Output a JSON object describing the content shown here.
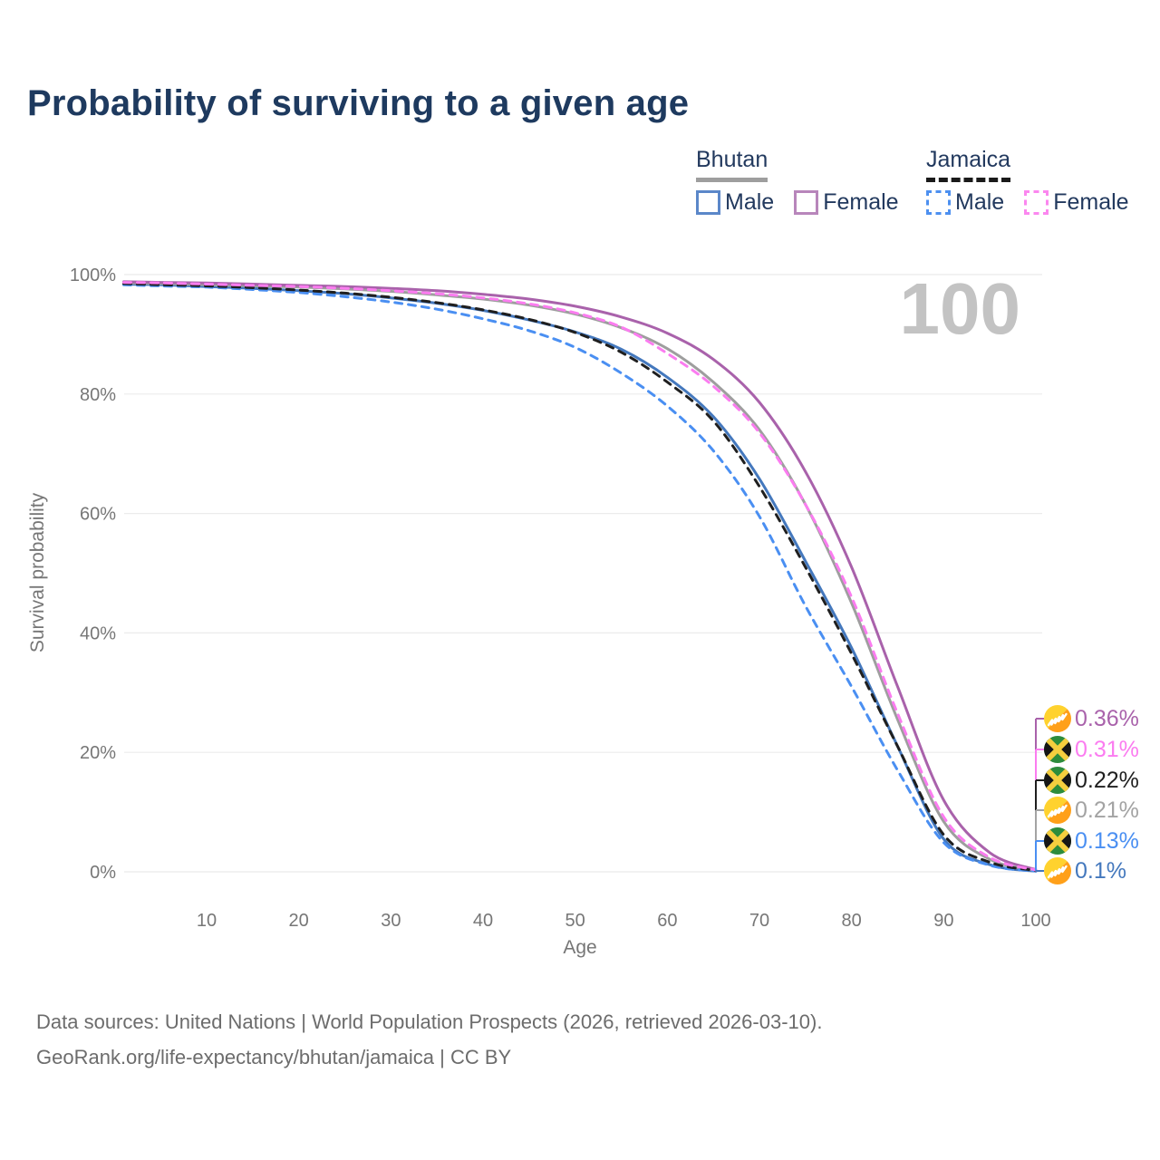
{
  "title": "Probability of surviving to a given age",
  "legend": {
    "groups": [
      {
        "country": "Bhutan",
        "line_style": "solid",
        "underline_color": "#9e9e9e",
        "items": [
          {
            "label": "Male",
            "color": "#5b87c9",
            "dashed": false
          },
          {
            "label": "Female",
            "color": "#b886bb",
            "dashed": false
          }
        ]
      },
      {
        "country": "Jamaica",
        "line_style": "dashed",
        "underline_color": "#1a1a1a",
        "items": [
          {
            "label": "Male",
            "color": "#4d90f0",
            "dashed": true
          },
          {
            "label": "Female",
            "color": "#fb87ef",
            "dashed": true
          }
        ]
      }
    ]
  },
  "chart_data": {
    "type": "line",
    "title": "Probability of surviving to a given age",
    "xlabel": "Age",
    "ylabel": "Survival probability",
    "watermark": "100",
    "x_ticks": [
      10,
      20,
      30,
      40,
      50,
      60,
      70,
      80,
      90,
      100
    ],
    "y_ticks": [
      "0%",
      "20%",
      "40%",
      "60%",
      "80%",
      "100%"
    ],
    "xlim": [
      1,
      100
    ],
    "ylim": [
      0,
      100
    ],
    "grid": "horizontal",
    "legend_position": "top-right",
    "ages": [
      1,
      5,
      10,
      15,
      20,
      25,
      30,
      35,
      40,
      45,
      50,
      55,
      60,
      65,
      70,
      75,
      80,
      85,
      90,
      95,
      100
    ],
    "series": [
      {
        "name": "Bhutan Male",
        "country": "Bhutan",
        "sex": "Male",
        "color": "#4478bd",
        "dashed": false,
        "values": [
          98.4,
          98.3,
          98.0,
          97.7,
          97.3,
          96.8,
          96.1,
          95.2,
          94.0,
          92.4,
          90.4,
          87.5,
          82.8,
          76.2,
          65.8,
          52.0,
          37.5,
          21.0,
          5.5,
          1.2,
          0.1
        ],
        "end_value_pct": "0.1%"
      },
      {
        "name": "Bhutan Both",
        "country": "Bhutan",
        "sex": "Both",
        "color": "#9e9e9e",
        "dashed": false,
        "values": [
          98.6,
          98.5,
          98.3,
          98.1,
          97.9,
          97.6,
          97.2,
          96.6,
          95.9,
          94.9,
          93.4,
          91.1,
          87.6,
          82.0,
          74.0,
          61.5,
          45.0,
          25.5,
          8.4,
          2.1,
          0.21
        ],
        "end_value_pct": "0.21%"
      },
      {
        "name": "Bhutan Female",
        "country": "Bhutan",
        "sex": "Female",
        "color": "#a962ab",
        "dashed": false,
        "values": [
          98.8,
          98.7,
          98.6,
          98.4,
          98.2,
          98.0,
          97.7,
          97.3,
          96.7,
          95.9,
          94.7,
          92.9,
          90.2,
          85.8,
          78.6,
          67.0,
          51.0,
          31.0,
          12.0,
          3.2,
          0.36
        ],
        "end_value_pct": "0.36%"
      },
      {
        "name": "Jamaica Male",
        "country": "Jamaica",
        "sex": "Male",
        "color": "#4a8ff2",
        "dashed": true,
        "values": [
          98.3,
          98.1,
          97.9,
          97.5,
          97.0,
          96.3,
          95.4,
          94.2,
          92.6,
          90.6,
          87.8,
          83.5,
          78.0,
          70.5,
          59.5,
          44.5,
          31.0,
          17.0,
          4.9,
          1.1,
          0.13
        ],
        "end_value_pct": "0.13%"
      },
      {
        "name": "Jamaica Both",
        "country": "Jamaica",
        "sex": "Both",
        "color": "#1f1f1f",
        "dashed": true,
        "values": [
          98.5,
          98.3,
          98.1,
          97.8,
          97.4,
          96.9,
          96.2,
          95.3,
          94.1,
          92.5,
          90.3,
          87.0,
          82.0,
          75.5,
          64.5,
          51.0,
          36.5,
          21.0,
          6.2,
          1.6,
          0.22
        ],
        "end_value_pct": "0.22%"
      },
      {
        "name": "Jamaica Female",
        "country": "Jamaica",
        "sex": "Female",
        "color": "#fb7cf0",
        "dashed": true,
        "values": [
          98.7,
          98.6,
          98.4,
          98.2,
          98.0,
          97.7,
          97.3,
          96.8,
          96.1,
          95.1,
          93.6,
          91.2,
          86.8,
          81.3,
          73.5,
          61.5,
          46.0,
          26.5,
          9.2,
          2.4,
          0.31
        ],
        "end_value_pct": "0.31%"
      }
    ]
  },
  "end_labels": [
    {
      "value": "0.36%",
      "flag": "bhutan",
      "series": "Bhutan Female",
      "color": "#a962ab"
    },
    {
      "value": "0.31%",
      "flag": "jamaica",
      "series": "Jamaica Female",
      "color": "#fb7cf0"
    },
    {
      "value": "0.22%",
      "flag": "jamaica",
      "series": "Jamaica Both",
      "color": "#1f1f1f"
    },
    {
      "value": "0.21%",
      "flag": "bhutan",
      "series": "Bhutan Both",
      "color": "#a3a3a3"
    },
    {
      "value": "0.13%",
      "flag": "jamaica",
      "series": "Jamaica Male",
      "color": "#4a8ff2"
    },
    {
      "value": "0.1%",
      "flag": "bhutan",
      "series": "Bhutan Male",
      "color": "#4478bd"
    }
  ],
  "footer": {
    "line1": "Data sources: United Nations | World Population Prospects (2026, retrieved 2026-03-10).",
    "line2": "GeoRank.org/life-expectancy/bhutan/jamaica | CC BY"
  },
  "colors": {
    "title": "#1e3a5f",
    "axis_text": "#767676",
    "gridline": "#ebebeb",
    "watermark": "#c3c3c3",
    "footer": "#6c6c6c"
  }
}
